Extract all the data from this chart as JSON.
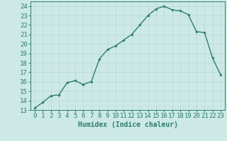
{
  "x": [
    0,
    1,
    2,
    3,
    4,
    5,
    6,
    7,
    8,
    9,
    10,
    11,
    12,
    13,
    14,
    15,
    16,
    17,
    18,
    19,
    20,
    21,
    22,
    23
  ],
  "y": [
    13.2,
    13.8,
    14.5,
    14.6,
    15.9,
    16.1,
    15.7,
    16.0,
    18.4,
    19.4,
    19.8,
    20.4,
    21.0,
    22.0,
    23.0,
    23.7,
    24.0,
    23.6,
    23.5,
    23.1,
    21.3,
    21.2,
    18.5,
    16.7
  ],
  "line_color": "#2e7d6e",
  "marker": "D",
  "marker_size": 1.8,
  "bg_color": "#cce9e5",
  "grid_color": "#b8d8d4",
  "xlabel": "Humidex (Indice chaleur)",
  "ylabel_ticks": [
    13,
    14,
    15,
    16,
    17,
    18,
    19,
    20,
    21,
    22,
    23,
    24
  ],
  "xlim": [
    -0.5,
    23.5
  ],
  "ylim": [
    13,
    24.5
  ],
  "xlabel_fontsize": 7,
  "tick_fontsize": 6.5,
  "line_width": 1.0
}
